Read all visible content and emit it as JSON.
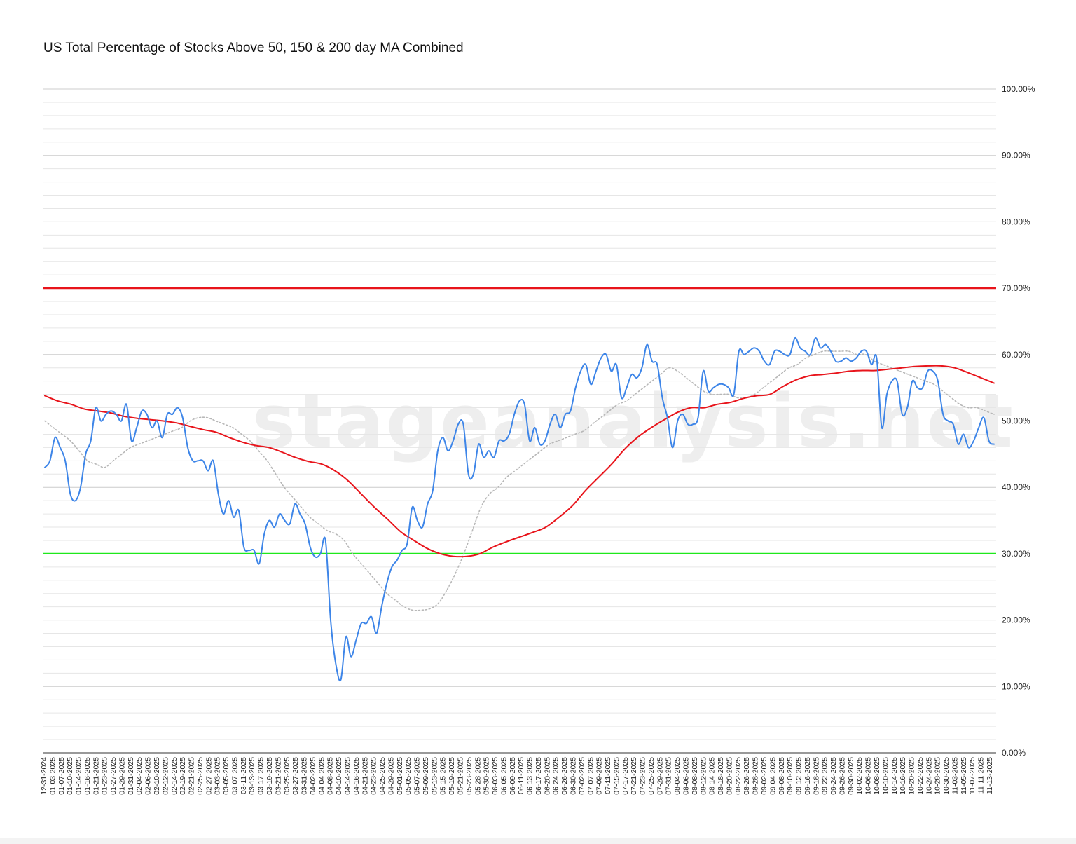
{
  "watermark": "stageanalysis.net",
  "chart_data": {
    "type": "line",
    "title": "US Total Percentage of Stocks Above 50, 150 & 200 day MA Combined",
    "xlabel": "",
    "ylabel": "",
    "ylim": [
      0,
      100
    ],
    "y_ticks": [
      "0.00%",
      "10.00%",
      "20.00%",
      "30.00%",
      "40.00%",
      "50.00%",
      "60.00%",
      "70.00%",
      "80.00%",
      "90.00%",
      "100.00%"
    ],
    "grid": true,
    "legend": "none",
    "x_tick_labels": [
      "12-31-2024",
      "01-03-2025",
      "01-07-2025",
      "01-10-2025",
      "01-14-2025",
      "01-16-2025",
      "01-21-2025",
      "01-23-2025",
      "01-27-2025",
      "01-29-2025",
      "01-31-2025",
      "02-04-2025",
      "02-06-2025",
      "02-10-2025",
      "02-12-2025",
      "02-14-2025",
      "02-19-2025",
      "02-21-2025",
      "02-25-2025",
      "02-27-2025",
      "03-03-2025",
      "03-05-2025",
      "03-07-2025",
      "03-11-2025",
      "03-13-2025",
      "03-17-2025",
      "03-19-2025",
      "03-21-2025",
      "03-25-2025",
      "03-27-2025",
      "03-31-2025",
      "04-02-2025",
      "04-04-2025",
      "04-08-2025",
      "04-10-2025",
      "04-14-2025",
      "04-16-2025",
      "04-21-2025",
      "04-23-2025",
      "04-25-2025",
      "04-29-2025",
      "05-01-2025",
      "05-05-2025",
      "05-07-2025",
      "05-09-2025",
      "05-13-2025",
      "05-15-2025",
      "05-19-2025",
      "05-21-2025",
      "05-23-2025",
      "05-28-2025",
      "05-30-2025",
      "06-03-2025",
      "06-05-2025",
      "06-09-2025",
      "06-11-2025",
      "06-13-2025",
      "06-17-2025",
      "06-20-2025",
      "06-24-2025",
      "06-26-2025",
      "06-30-2025",
      "07-02-2025",
      "07-07-2025",
      "07-09-2025",
      "07-11-2025",
      "07-15-2025",
      "07-17-2025",
      "07-21-2025",
      "07-23-2025",
      "07-25-2025",
      "07-29-2025",
      "07-31-2025",
      "08-04-2025",
      "08-06-2025",
      "08-08-2025",
      "08-12-2025",
      "08-14-2025",
      "08-18-2025",
      "08-20-2025",
      "08-22-2025",
      "08-26-2025",
      "08-28-2025",
      "09-02-2025",
      "09-04-2025",
      "09-08-2025",
      "09-10-2025",
      "09-12-2025",
      "09-16-2025",
      "09-18-2025",
      "09-22-2025",
      "09-24-2025",
      "09-26-2025",
      "09-30-2025",
      "10-02-2025",
      "10-06-2025",
      "10-08-2025",
      "10-10-2025",
      "10-14-2025",
      "10-16-2025",
      "10-20-2025",
      "10-22-2025",
      "10-24-2025",
      "10-28-2025",
      "10-30-2025",
      "11-03-2025",
      "11-05-2025",
      "11-07-2025",
      "11-11-2025",
      "11-13-2025"
    ],
    "reference_lines": [
      {
        "value": 70,
        "color": "#e8141b"
      },
      {
        "value": 30,
        "color": "#1ee81b"
      }
    ],
    "series": [
      {
        "style": "solid",
        "color": "#3d85e8",
        "values": [
          43.0,
          44.0,
          47.5,
          46.0,
          44.0,
          39.0,
          38.0,
          40.0,
          45.0,
          47.0,
          52.0,
          50.0,
          51.0,
          51.5,
          51.0,
          50.0,
          52.5,
          47.0,
          49.0,
          51.5,
          51.0,
          49.0,
          50.0,
          47.5,
          51.0,
          51.0,
          52.0,
          50.5,
          46.0,
          44.0,
          44.0,
          44.0,
          42.5,
          44.0,
          39.0,
          36.0,
          38.0,
          35.5,
          36.5,
          31.0,
          30.5,
          30.5,
          28.5,
          33.0,
          35.0,
          34.0,
          36.0,
          35.0,
          34.5,
          37.5,
          36.0,
          34.5,
          31.0,
          29.5,
          30.0,
          32.0,
          20.0,
          13.5,
          11.0,
          17.5,
          14.5,
          17.0,
          19.5,
          19.5,
          20.5,
          18.0,
          22.0,
          25.5,
          28.0,
          29.0,
          30.5,
          31.5,
          37.0,
          35.0,
          34.0,
          37.5,
          39.5,
          45.5,
          47.5,
          45.5,
          47.0,
          49.5,
          49.5,
          42.0,
          42.0,
          46.5,
          44.5,
          45.5,
          44.5,
          47.0,
          47.0,
          48.0,
          51.0,
          53.0,
          52.5,
          47.0,
          49.0,
          46.5,
          47.0,
          49.5,
          51.0,
          49.0,
          51.0,
          51.5,
          55.0,
          57.5,
          58.5,
          55.5,
          57.5,
          59.5,
          60.0,
          57.5,
          58.5,
          53.5,
          55.0,
          57.0,
          56.5,
          58.0,
          61.5,
          59.0,
          58.5,
          53.5,
          50.5,
          46.0,
          50.0,
          51.0,
          49.5,
          49.5,
          50.5,
          57.5,
          54.5,
          55.0,
          55.5,
          55.5,
          55.0,
          54.0,
          60.5,
          60.0,
          60.5,
          61.0,
          60.5,
          59.0,
          58.5,
          60.5,
          60.5,
          60.0,
          60.0,
          62.5,
          61.0,
          60.5,
          60.0,
          62.5,
          61.0,
          61.5,
          60.5,
          59.0,
          59.0,
          59.5,
          59.0,
          59.5,
          60.5,
          60.5,
          58.5,
          59.5,
          49.0,
          54.0,
          56.0,
          56.0,
          51.0,
          52.0,
          56.0,
          55.0,
          55.0,
          57.5,
          57.5,
          56.0,
          51.0,
          50.0,
          49.5,
          46.5,
          48.0,
          46.0,
          47.0,
          49.0,
          50.5,
          47.0,
          46.5
        ]
      },
      {
        "style": "dotted",
        "color": "#b7b7b7",
        "values": [
          50.0,
          49.0,
          48.0,
          47.0,
          45.5,
          44.0,
          43.5,
          43.0,
          44.0,
          45.0,
          46.0,
          46.5,
          47.0,
          47.5,
          48.0,
          48.5,
          49.0,
          50.0,
          50.5,
          50.5,
          50.0,
          49.5,
          49.0,
          48.0,
          47.0,
          45.5,
          44.0,
          42.0,
          40.0,
          38.5,
          37.0,
          35.5,
          34.5,
          33.5,
          33.0,
          32.0,
          30.0,
          28.5,
          27.0,
          25.5,
          24.0,
          23.0,
          22.0,
          21.5,
          21.5,
          21.7,
          22.5,
          24.5,
          27.0,
          30.0,
          33.5,
          37.0,
          39.0,
          40.0,
          41.5,
          42.5,
          43.5,
          44.5,
          45.5,
          46.5,
          47.0,
          47.5,
          48.0,
          48.5,
          49.5,
          50.5,
          51.5,
          52.5,
          53.0,
          54.0,
          55.0,
          56.0,
          57.0,
          58.0,
          57.5,
          56.5,
          55.5,
          54.5,
          54.0,
          54.0,
          54.0,
          53.5,
          53.5,
          54.0,
          55.0,
          56.0,
          57.0,
          58.0,
          58.5,
          59.5,
          60.0,
          60.5,
          60.5,
          60.5,
          60.5,
          60.0,
          60.0,
          59.0,
          58.5,
          58.0,
          57.5,
          57.0,
          56.5,
          56.0,
          55.5,
          54.5,
          53.5,
          52.5,
          52.0,
          52.0,
          51.5,
          51.0
        ]
      },
      {
        "style": "solid",
        "color": "#e8141b",
        "values": [
          53.8,
          53.0,
          52.5,
          51.8,
          51.5,
          51.2,
          50.7,
          50.4,
          50.2,
          50.0,
          49.7,
          49.2,
          48.7,
          48.3,
          47.5,
          46.8,
          46.3,
          46.0,
          45.3,
          44.5,
          43.9,
          43.5,
          42.5,
          41.0,
          39.0,
          37.0,
          35.2,
          33.3,
          32.0,
          30.8,
          30.0,
          29.6,
          29.6,
          30.0,
          31.0,
          31.8,
          32.5,
          33.2,
          34.0,
          35.5,
          37.2,
          39.5,
          41.5,
          43.5,
          45.8,
          47.6,
          49.0,
          50.2,
          51.3,
          52.0,
          52.0,
          52.5,
          52.8,
          53.4,
          53.8,
          54.0,
          55.2,
          56.2,
          56.8,
          57.0,
          57.2,
          57.5,
          57.6,
          57.6,
          57.8,
          58.0,
          58.2,
          58.3,
          58.3,
          58.0,
          57.3,
          56.5,
          55.7
        ]
      }
    ]
  }
}
